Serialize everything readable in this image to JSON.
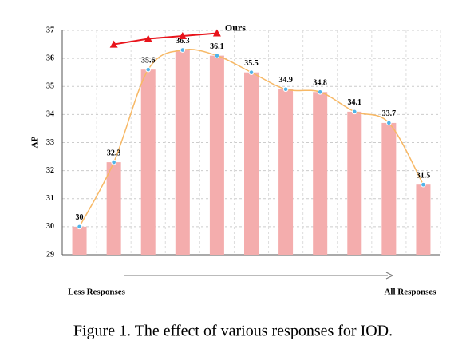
{
  "chart_data": {
    "type": "bar",
    "ylabel": "AP",
    "categories": [
      null,
      null,
      null,
      null,
      null,
      null,
      null,
      null,
      null,
      null,
      null
    ],
    "values": [
      30,
      32.3,
      35.6,
      36.3,
      36.1,
      35.5,
      34.9,
      34.8,
      34.1,
      33.7,
      31.5
    ],
    "color": "#f4adad",
    "line_color": "#f7b865",
    "point_color": "#4fb3e8",
    "series": [
      {
        "name": "Ours",
        "color": "#e8141b",
        "values": [
          null,
          36.5,
          36.7,
          36.8,
          36.9,
          null,
          null,
          null,
          null,
          null,
          null
        ]
      }
    ],
    "ylim": [
      29,
      37
    ],
    "yticks": [
      29,
      30,
      31,
      32,
      33,
      34,
      35,
      36,
      37
    ],
    "grid": true,
    "x_start_label": "Less Responses",
    "x_end_label": "All Responses"
  },
  "caption": "Figure 1. The effect of various responses for IOD."
}
